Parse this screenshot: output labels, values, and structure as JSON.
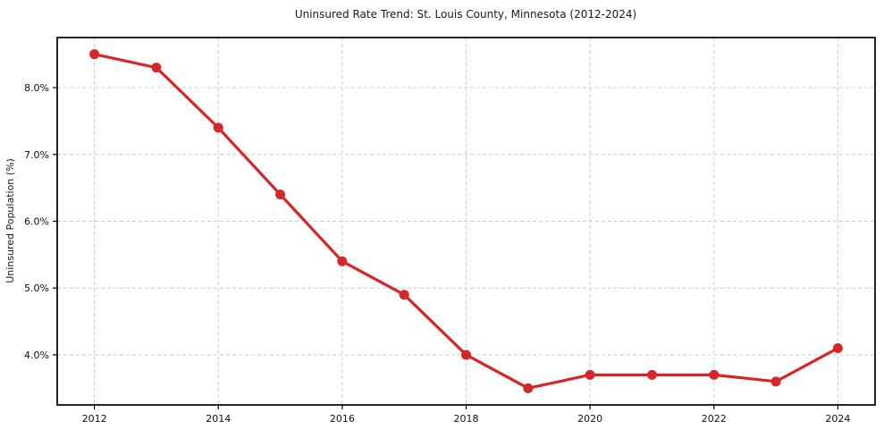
{
  "chart_data": {
    "type": "line",
    "title": "Uninsured Rate Trend: St. Louis County, Minnesota (2012-2024)",
    "xlabel": "",
    "ylabel": "Uninsured Population (%)",
    "x": [
      2012,
      2013,
      2014,
      2015,
      2016,
      2017,
      2018,
      2019,
      2020,
      2021,
      2022,
      2023,
      2024
    ],
    "values": [
      8.5,
      8.3,
      7.4,
      6.4,
      5.4,
      4.9,
      4.0,
      3.5,
      3.7,
      3.7,
      3.7,
      3.6,
      4.1
    ],
    "xlim": [
      2011.4,
      2024.6
    ],
    "ylim": [
      3.25,
      8.75
    ],
    "xticks": [
      2012,
      2014,
      2016,
      2018,
      2020,
      2022,
      2024
    ],
    "xtick_labels": [
      "2012",
      "2014",
      "2016",
      "2018",
      "2020",
      "2022",
      "2024"
    ],
    "yticks": [
      4.0,
      5.0,
      6.0,
      7.0,
      8.0
    ],
    "ytick_labels": [
      "4.0%",
      "5.0%",
      "6.0%",
      "7.0%",
      "8.0%"
    ],
    "grid": true,
    "legend": "none",
    "line_color": "#d62728",
    "marker": "circle",
    "marker_radius": 5.5,
    "grid_color": "#cccccc",
    "background_color": "#ffffff"
  }
}
